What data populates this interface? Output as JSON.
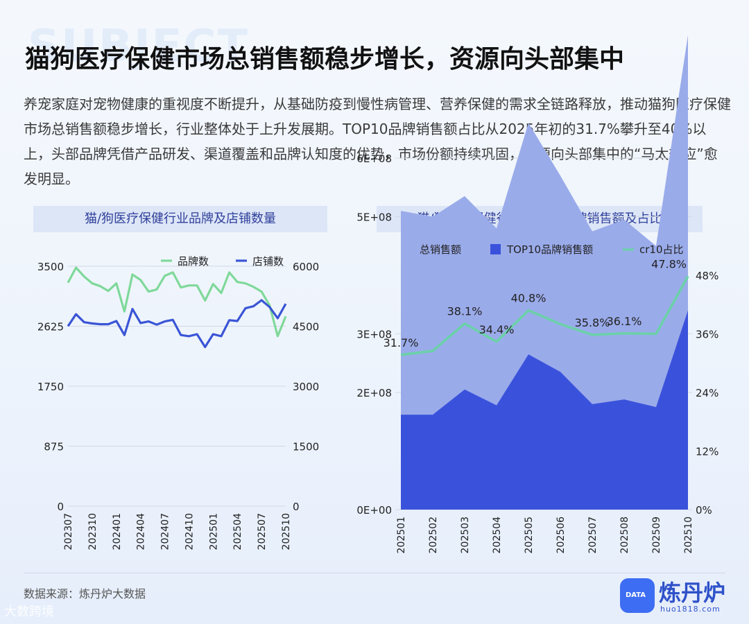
{
  "header": {
    "headline": "猫狗医疗保健市场总销售额稳步增长，资源向头部集中",
    "intro": "养宠家庭对宠物健康的重视度不断提升，从基础防疫到慢性病管理、营养保健的需求全链路释放，推动猫狗医疗保健市场总销售额稳步增长，行业整体处于上升发展期。TOP10品牌销售额占比从2025年初的31.7%攀升至40%以上，头部品牌凭借产品研发、渠道覆盖和品牌认知度的优势，市场份额持续巩固，资源向头部集中的“马太效应”愈发明显。"
  },
  "footer": {
    "source": "数据来源：炼丹炉大数据",
    "corner_mark": "大数跨境",
    "logo_name": "炼丹炉",
    "logo_url": "huo1818.com",
    "logo_badge": "DATA"
  },
  "chart_data": [
    {
      "type": "line",
      "title": "猫/狗医疗保健行业品牌及店铺数量",
      "x": [
        "202307",
        "202308",
        "202309",
        "202310",
        "202311",
        "202312",
        "202401",
        "202402",
        "202403",
        "202404",
        "202405",
        "202406",
        "202407",
        "202408",
        "202409",
        "202410",
        "202411",
        "202412",
        "202501",
        "202502",
        "202503",
        "202504",
        "202505",
        "202506",
        "202507",
        "202508",
        "202509",
        "202510"
      ],
      "x_tick_labels": [
        "202307",
        "202310",
        "202401",
        "202404",
        "202407",
        "202410",
        "202501",
        "202504",
        "202507",
        "202510"
      ],
      "series": [
        {
          "name": "品牌数",
          "axis": "left",
          "color": "#7fd99a",
          "values": [
            3260,
            3480,
            3350,
            3250,
            3210,
            3140,
            3250,
            2840,
            3380,
            3300,
            3130,
            3160,
            3360,
            3410,
            3190,
            3220,
            3220,
            3000,
            3240,
            3110,
            3410,
            3270,
            3250,
            3200,
            3130,
            2930,
            2480,
            2770
          ]
        },
        {
          "name": "店铺数",
          "axis": "right",
          "color": "#3a55d6",
          "values": [
            4500,
            4800,
            4600,
            4570,
            4550,
            4550,
            4630,
            4280,
            4930,
            4580,
            4620,
            4540,
            4620,
            4660,
            4280,
            4250,
            4300,
            3980,
            4300,
            4250,
            4650,
            4630,
            4950,
            5000,
            5150,
            4980,
            4700,
            5060
          ]
        }
      ],
      "y_left": {
        "min": 0,
        "max": 3500,
        "ticks": [
          "3500",
          "2625",
          "1750",
          "875",
          "0"
        ]
      },
      "y_right": {
        "min": 0,
        "max": 6000,
        "ticks": [
          "6000",
          "4500",
          "3000",
          "1500",
          "0"
        ]
      },
      "grid": true,
      "legend": "top-right"
    },
    {
      "type": "area",
      "title": "猫/狗医疗保健行业TOP10品牌销售额及占比",
      "categories": [
        "202501",
        "202502",
        "202503",
        "202504",
        "202505",
        "202506",
        "202507",
        "202508",
        "202509",
        "202510"
      ],
      "series": [
        {
          "name": "总销售额",
          "type": "area",
          "axis": "left",
          "color": "#9aabea",
          "values": [
            510000000.0,
            500000000.0,
            535000000.0,
            480000000.0,
            660000000.0,
            570000000.0,
            475000000.0,
            495000000.0,
            450000000.0,
            810000000.0
          ]
        },
        {
          "name": "TOP10品牌销售额",
          "type": "area",
          "axis": "left",
          "color": "#3a52db",
          "values": [
            162000000.0,
            162000000.0,
            205000000.0,
            178000000.0,
            265000000.0,
            235000000.0,
            180000000.0,
            188000000.0,
            175000000.0,
            340000000.0
          ]
        },
        {
          "name": "cr10占比",
          "type": "line",
          "axis": "right",
          "color": "#6bd1a9",
          "values": [
            31.7,
            32.5,
            38.1,
            34.4,
            40.8,
            38.0,
            35.8,
            36.1,
            36.0,
            47.8
          ]
        }
      ],
      "point_labels": [
        {
          "index": 0,
          "text": "31.7%"
        },
        {
          "index": 2,
          "text": "38.1%"
        },
        {
          "index": 3,
          "text": "34.4%"
        },
        {
          "index": 4,
          "text": "40.8%"
        },
        {
          "index": 6,
          "text": "35.8%"
        },
        {
          "index": 7,
          "text": "36.1%"
        },
        {
          "index": 9,
          "text": "47.8%"
        }
      ],
      "y_left": {
        "min": 0,
        "max": 600000000.0,
        "ticks": [
          "6E+08",
          "5E+08",
          "3E+08",
          "2E+08",
          "0E+00"
        ],
        "tick_values": [
          600000000.0,
          500000000.0,
          300000000.0,
          200000000.0,
          0
        ]
      },
      "y_right": {
        "min": 0,
        "max": 48,
        "ticks": [
          "48%",
          "36%",
          "24%",
          "12%",
          "0%"
        ],
        "tick_values": [
          48,
          36,
          24,
          12,
          0
        ]
      },
      "grid": true,
      "legend": "top"
    }
  ]
}
